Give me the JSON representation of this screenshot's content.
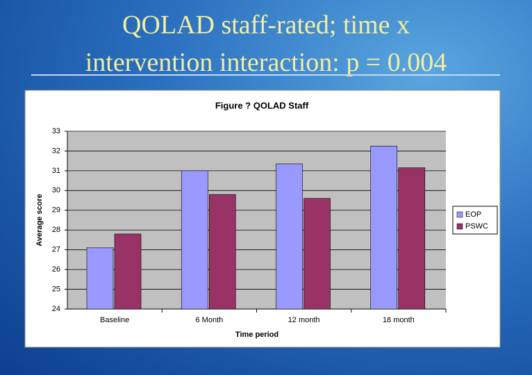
{
  "slide_title": [
    "QOLAD staff-rated; time x",
    "intervention interaction: p = 0.004"
  ],
  "chart_data": {
    "type": "bar",
    "title": "Figure ? QOLAD Staff",
    "x_label": "Time period",
    "y_label": "Average score",
    "categories": [
      "Baseline",
      "6 Month",
      "12 month",
      "18 month"
    ],
    "series": [
      {
        "name": "EOP",
        "color": "#9999ff",
        "values": [
          27.1,
          31.0,
          31.35,
          32.25
        ]
      },
      {
        "name": "PSWC",
        "color": "#993366",
        "values": [
          27.8,
          29.8,
          29.6,
          31.15
        ]
      }
    ],
    "ylim": [
      24,
      33
    ],
    "yticks": [
      24,
      25,
      26,
      27,
      28,
      29,
      30,
      31,
      32,
      33
    ],
    "grid": true,
    "legend": "right"
  }
}
